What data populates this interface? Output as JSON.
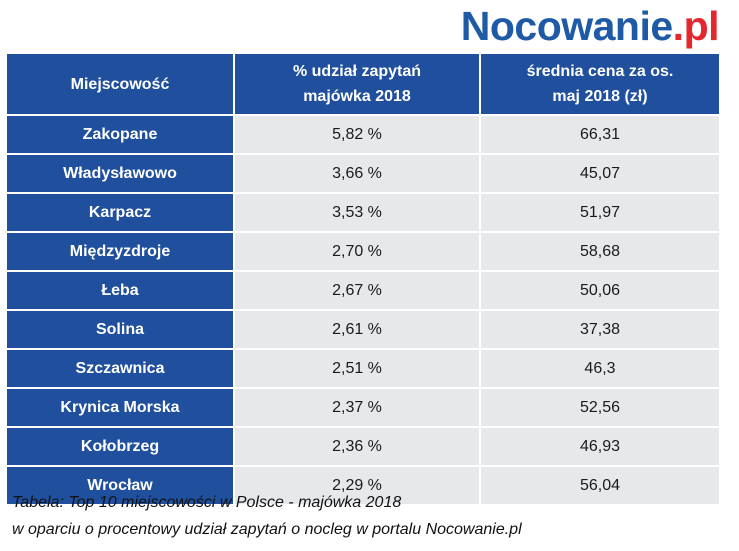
{
  "logo": {
    "brand": "Nocowanie",
    "tld": ".pl"
  },
  "table": {
    "headers": {
      "city": "Miejscowość",
      "share_line1": "% udział zapytań",
      "share_line2": "majówka 2018",
      "price_line1": "średnia cena za os.",
      "price_line2": "maj 2018 (zł)"
    },
    "rows": [
      {
        "city": "Zakopane",
        "share": "5,82 %",
        "price": "66,31"
      },
      {
        "city": "Władysławowo",
        "share": "3,66 %",
        "price": "45,07"
      },
      {
        "city": "Karpacz",
        "share": "3,53 %",
        "price": "51,97"
      },
      {
        "city": "Międzyzdroje",
        "share": "2,70 %",
        "price": "58,68"
      },
      {
        "city": "Łeba",
        "share": "2,67 %",
        "price": "50,06"
      },
      {
        "city": "Solina",
        "share": "2,61 %",
        "price": "37,38"
      },
      {
        "city": "Szczawnica",
        "share": "2,51 %",
        "price": "46,3"
      },
      {
        "city": "Krynica Morska",
        "share": "2,37 %",
        "price": "52,56"
      },
      {
        "city": "Kołobrzeg",
        "share": "2,36 %",
        "price": "46,93"
      },
      {
        "city": "Wrocław",
        "share": "2,29 %",
        "price": "56,04"
      }
    ]
  },
  "caption": {
    "line1": "Tabela: Top 10 miejscowości w Polsce - majówka 2018",
    "line2": "w oparciu o procentowy udział zapytań  o nocleg w portalu Nocowanie.pl"
  },
  "colors": {
    "header_blue": "#1f4f9d",
    "logo_blue": "#1f5aa6",
    "logo_red": "#e3272d",
    "cell_gray": "#e7e8ea"
  }
}
